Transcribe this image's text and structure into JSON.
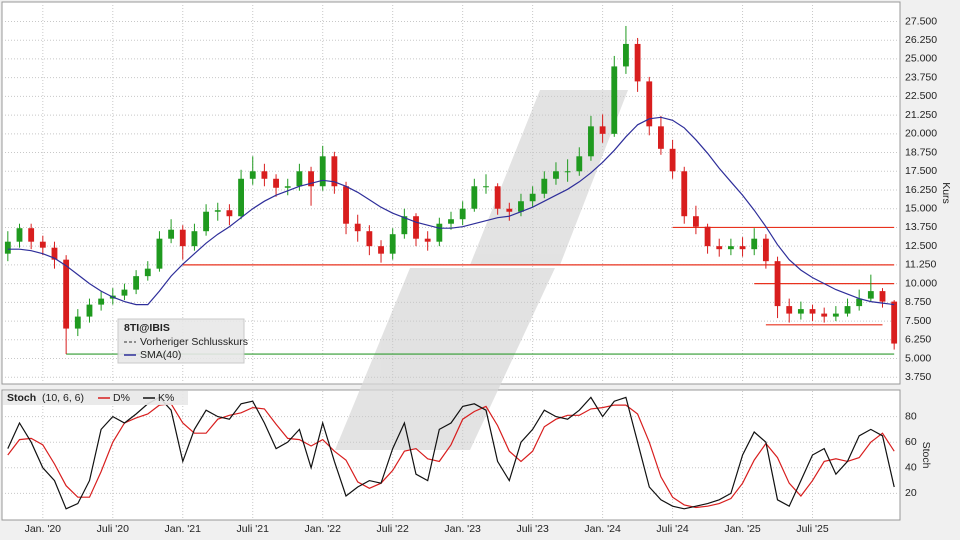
{
  "chart_data": [
    {
      "type": "candlestick",
      "title": "8TI@IBIS",
      "ylabel": "Kurs",
      "grid": true,
      "categories": [
        null,
        null,
        null,
        "Jan. '20",
        null,
        null,
        null,
        null,
        null,
        "Juli '20",
        null,
        null,
        null,
        null,
        null,
        "Jan. '21",
        null,
        null,
        null,
        null,
        null,
        "Juli '21",
        null,
        null,
        null,
        null,
        null,
        "Jan. '22",
        null,
        null,
        null,
        null,
        null,
        "Juli '22",
        null,
        null,
        null,
        null,
        null,
        "Jan. '23",
        null,
        null,
        null,
        null,
        null,
        "Juli '23",
        null,
        null,
        null,
        null,
        null,
        "Jan. '24",
        null,
        null,
        null,
        null,
        null,
        "Juli '24",
        null,
        null,
        null,
        null,
        null,
        "Jan. '25",
        null,
        null,
        null,
        null,
        null,
        "Juli '25",
        null,
        null,
        null,
        null,
        null,
        null,
        null
      ],
      "open": [
        12.0,
        12.8,
        13.7,
        12.8,
        12.4,
        11.6,
        7.0,
        7.8,
        8.6,
        9.0,
        9.2,
        9.6,
        10.5,
        11.0,
        13.0,
        13.6,
        12.5,
        13.5,
        14.8,
        14.9,
        14.5,
        17.0,
        17.5,
        17.0,
        16.4,
        16.5,
        17.5,
        16.5,
        18.5,
        16.5,
        14.0,
        13.5,
        12.5,
        12.0,
        13.3,
        14.5,
        13.0,
        12.8,
        14.0,
        14.3,
        15.0,
        16.5,
        16.5,
        15.0,
        14.8,
        15.5,
        16.0,
        17.0,
        17.5,
        17.5,
        18.5,
        20.5,
        20.0,
        24.5,
        26.0,
        23.5,
        20.5,
        19.0,
        17.5,
        14.5,
        13.8,
        12.5,
        12.3,
        12.5,
        12.3,
        13.0,
        11.5,
        8.5,
        8.0,
        8.3,
        8.0,
        7.8,
        8.0,
        8.5,
        9.0,
        9.5,
        8.8
      ],
      "high": [
        13.5,
        14.0,
        14.0,
        13.2,
        12.8,
        11.9,
        8.3,
        9.0,
        9.5,
        9.7,
        10.0,
        10.9,
        11.5,
        13.5,
        14.3,
        13.9,
        14.0,
        15.3,
        15.4,
        15.3,
        17.6,
        18.5,
        18.0,
        17.3,
        17.0,
        18.0,
        17.8,
        19.2,
        18.8,
        16.8,
        14.6,
        13.9,
        12.9,
        13.7,
        15.0,
        14.7,
        13.5,
        14.4,
        14.8,
        15.5,
        17.0,
        17.3,
        16.7,
        15.4,
        16.0,
        16.5,
        17.5,
        18.1,
        18.3,
        19.1,
        21.2,
        21.3,
        25.2,
        27.2,
        26.4,
        23.8,
        21.2,
        19.6,
        17.8,
        15.2,
        14.0,
        13.0,
        13.0,
        13.1,
        13.7,
        13.3,
        11.8,
        9.0,
        8.8,
        8.6,
        8.4,
        8.5,
        9.0,
        9.6,
        10.6,
        9.7,
        8.9
      ],
      "low": [
        11.5,
        12.4,
        12.3,
        11.9,
        11.0,
        5.3,
        6.5,
        7.4,
        8.2,
        8.6,
        8.9,
        9.3,
        10.2,
        10.8,
        12.7,
        11.6,
        12.2,
        13.2,
        14.2,
        13.9,
        14.3,
        16.6,
        16.5,
        15.8,
        15.9,
        16.2,
        15.2,
        16.2,
        16.0,
        13.3,
        12.8,
        11.9,
        11.4,
        11.6,
        13.0,
        12.5,
        12.2,
        12.5,
        13.6,
        13.9,
        14.8,
        16.0,
        14.6,
        14.2,
        14.5,
        15.1,
        15.7,
        16.6,
        16.8,
        17.2,
        18.2,
        19.4,
        19.8,
        24.0,
        22.8,
        19.9,
        18.6,
        17.0,
        14.0,
        13.3,
        12.0,
        11.8,
        11.9,
        11.8,
        11.9,
        11.0,
        7.7,
        7.4,
        7.6,
        7.5,
        7.4,
        7.5,
        7.8,
        8.2,
        8.8,
        8.4,
        5.6
      ],
      "close": [
        12.8,
        13.7,
        12.8,
        12.4,
        11.6,
        7.0,
        7.8,
        8.6,
        9.0,
        9.2,
        9.6,
        10.5,
        11.0,
        13.0,
        13.6,
        12.5,
        13.5,
        14.8,
        14.9,
        14.5,
        17.0,
        17.5,
        17.0,
        16.4,
        16.5,
        17.5,
        16.5,
        18.5,
        16.5,
        14.0,
        13.5,
        12.5,
        12.0,
        13.3,
        14.5,
        13.0,
        12.8,
        14.0,
        14.3,
        15.0,
        16.5,
        16.5,
        15.0,
        14.8,
        15.5,
        16.0,
        17.0,
        17.5,
        17.5,
        18.5,
        20.5,
        20.0,
        24.5,
        26.0,
        23.5,
        20.5,
        19.0,
        17.5,
        14.5,
        13.8,
        12.5,
        12.3,
        12.5,
        12.3,
        13.0,
        11.5,
        8.5,
        8.0,
        8.3,
        8.0,
        7.8,
        8.0,
        8.5,
        9.0,
        9.5,
        8.8,
        6.0
      ],
      "up_color": "#1f9a1f",
      "down_color": "#d81e1e",
      "series": [
        {
          "name": "SMA(40)",
          "color": "#2e2e9a",
          "values": [
            12.3,
            12.3,
            12.2,
            12.0,
            11.7,
            11.2,
            10.6,
            10.0,
            9.5,
            9.1,
            8.8,
            8.6,
            8.6,
            9.5,
            10.5,
            11.3,
            12.0,
            12.7,
            13.3,
            13.8,
            14.4,
            15.0,
            15.5,
            15.9,
            16.2,
            16.5,
            16.7,
            16.9,
            16.8,
            16.5,
            16.1,
            15.6,
            15.1,
            14.7,
            14.4,
            14.1,
            13.9,
            13.7,
            13.7,
            13.8,
            14.0,
            14.2,
            14.4,
            14.5,
            14.8,
            15.1,
            15.5,
            15.9,
            16.3,
            16.8,
            17.4,
            18.1,
            18.9,
            19.8,
            20.6,
            21.0,
            21.1,
            20.9,
            20.4,
            19.6,
            18.7,
            17.7,
            16.8,
            15.9,
            14.9,
            13.8,
            12.6,
            11.6,
            10.9,
            10.4,
            10.0,
            9.6,
            9.3,
            9.0,
            8.8,
            8.7,
            8.6
          ]
        }
      ],
      "legend_extra": "Vorheriger Schlusskurs",
      "levels": [
        {
          "value": 11.25,
          "color": "#e8321e",
          "start": 15,
          "end": 76
        },
        {
          "value": 13.75,
          "color": "#e8321e",
          "start": 57,
          "end": 76
        },
        {
          "value": 10.0,
          "color": "#e8321e",
          "start": 64,
          "end": 76
        },
        {
          "value": 7.25,
          "color": "#e8321e",
          "start": 65,
          "end": 75
        },
        {
          "value": 5.3,
          "color": "#2f9a2f",
          "start": 5,
          "end": 76
        }
      ],
      "ylim": [
        3.3,
        28.8
      ],
      "yticks": [
        {
          "value": 3.75,
          "label": "3.750"
        },
        {
          "value": 5,
          "label": "5.000"
        },
        {
          "value": 6.25,
          "label": "6.250"
        },
        {
          "value": 7.5,
          "label": "7.500"
        },
        {
          "value": 8.75,
          "label": "8.750"
        },
        {
          "value": 10,
          "label": "10.000"
        },
        {
          "value": 11.25,
          "label": "11.250"
        },
        {
          "value": 12.5,
          "label": "12.500"
        },
        {
          "value": 13.75,
          "label": "13.750"
        },
        {
          "value": 15,
          "label": "15.000"
        },
        {
          "value": 16.25,
          "label": "16.250"
        },
        {
          "value": 17.5,
          "label": "17.500"
        },
        {
          "value": 18.75,
          "label": "18.750"
        },
        {
          "value": 20,
          "label": "20.000"
        },
        {
          "value": 21.25,
          "label": "21.250"
        },
        {
          "value": 22.5,
          "label": "22.500"
        },
        {
          "value": 23.75,
          "label": "23.750"
        },
        {
          "value": 25,
          "label": "25.000"
        },
        {
          "value": 26.25,
          "label": "26.250"
        },
        {
          "value": 27.5,
          "label": "27.500"
        }
      ]
    },
    {
      "type": "line",
      "title": "Stoch",
      "subtitle": "(10, 6, 6)",
      "ylabel": "Stoch",
      "grid": true,
      "series": [
        {
          "name": "D%",
          "color": "#d81e1e",
          "values": [
            50,
            62,
            63,
            58,
            43,
            26,
            17,
            17,
            37,
            60,
            75,
            79,
            82,
            89,
            90,
            75,
            67,
            67,
            78,
            81,
            83,
            87,
            86,
            74,
            63,
            62,
            57,
            62,
            53,
            46,
            29,
            24,
            28,
            38,
            53,
            55,
            47,
            45,
            58,
            78,
            84,
            88,
            73,
            53,
            45,
            53,
            72,
            78,
            81,
            81,
            86,
            87,
            89,
            89,
            82,
            60,
            33,
            17,
            11,
            9,
            10,
            12,
            16,
            28,
            46,
            59,
            48,
            28,
            18,
            30,
            45,
            47,
            45,
            48,
            60,
            67,
            53
          ]
        },
        {
          "name": "K%",
          "color": "#111111",
          "values": [
            55,
            75,
            60,
            40,
            30,
            8,
            12,
            30,
            70,
            80,
            75,
            82,
            90,
            95,
            85,
            45,
            70,
            85,
            80,
            78,
            90,
            92,
            75,
            55,
            60,
            70,
            40,
            75,
            45,
            18,
            25,
            30,
            28,
            55,
            75,
            35,
            30,
            70,
            75,
            88,
            90,
            85,
            45,
            30,
            60,
            70,
            85,
            80,
            78,
            85,
            95,
            80,
            92,
            95,
            60,
            25,
            15,
            10,
            8,
            10,
            12,
            15,
            20,
            50,
            68,
            60,
            15,
            10,
            30,
            50,
            55,
            35,
            45,
            65,
            70,
            65,
            25
          ]
        }
      ],
      "ylim": [
        0,
        100
      ],
      "yticks": [
        20,
        40,
        60,
        80
      ]
    }
  ]
}
